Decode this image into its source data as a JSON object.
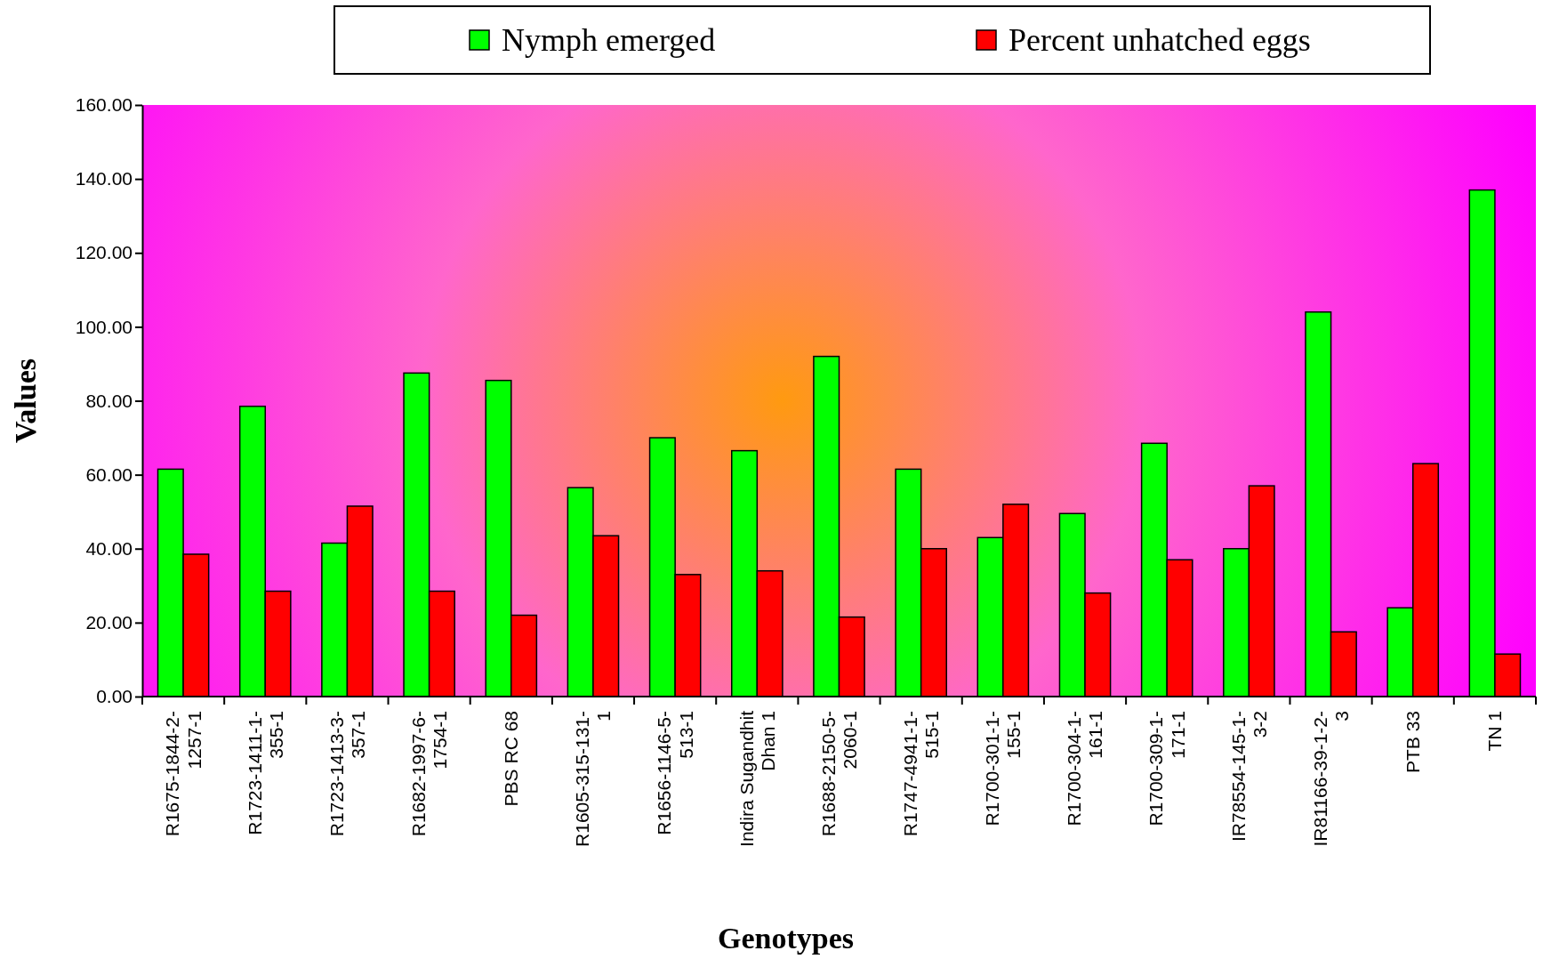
{
  "chart_data": {
    "type": "bar",
    "xlabel": "Genotypes",
    "ylabel": "Values",
    "categories": [
      "R1675-1844-2-1257-1",
      "R1723-1411-1-355-1",
      "R1723-1413-3-357-1",
      "R1682-1997-6-1754-1",
      "PBS RC 68",
      "R1605-315-131-1",
      "R1656-1146-5-513-1",
      "Indira Sugandhit Dhan 1",
      "R1688-2150-5-2060-1",
      "R1747-4941-1-515-1",
      "R1700-301-1-155-1",
      "R1700-304-1-161-1",
      "R1700-309-1-171-1",
      "IR78554-145-1-3-2",
      "IR81166-39-1-2-3",
      "PTB 33",
      "TN 1"
    ],
    "series": [
      {
        "name": "Nymph emerged",
        "color": "#00ff00",
        "values": [
          61.5,
          78.5,
          41.5,
          87.5,
          85.5,
          56.5,
          70,
          66.5,
          92,
          61.5,
          43,
          49.5,
          68.5,
          40,
          104,
          24,
          137
        ]
      },
      {
        "name": "Percent unhatched eggs",
        "color": "#ff0000",
        "values": [
          38.5,
          28.5,
          51.5,
          28.5,
          22,
          43.5,
          33,
          34,
          21.5,
          40,
          52,
          28,
          37,
          57,
          17.5,
          63,
          11.5
        ]
      }
    ],
    "ylim": [
      0,
      160
    ],
    "yticks": [
      {
        "value": 0,
        "label": "0.00"
      },
      {
        "value": 20,
        "label": "20.00"
      },
      {
        "value": 40,
        "label": "40.00"
      },
      {
        "value": 60,
        "label": "60.00"
      },
      {
        "value": 80,
        "label": "80.00"
      },
      {
        "value": 100,
        "label": "100.00"
      },
      {
        "value": 120,
        "label": "120.00"
      },
      {
        "value": 140,
        "label": "140.00"
      },
      {
        "value": 160,
        "label": "160.00"
      }
    ],
    "grid": false,
    "legend": "top"
  }
}
